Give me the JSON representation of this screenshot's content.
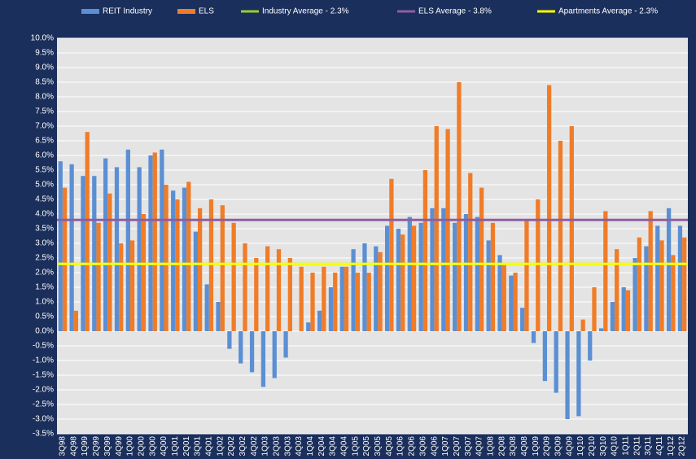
{
  "chart_data": {
    "type": "bar",
    "categories": [
      "3Q98",
      "4Q98",
      "1Q99",
      "2Q99",
      "3Q99",
      "4Q99",
      "1Q00",
      "2Q00",
      "3Q00",
      "4Q00",
      "1Q01",
      "2Q01",
      "3Q01",
      "4Q01",
      "1Q02",
      "2Q02",
      "3Q02",
      "4Q02",
      "1Q03",
      "2Q03",
      "3Q03",
      "4Q03",
      "1Q04",
      "2Q04",
      "3Q04",
      "4Q04",
      "1Q05",
      "2Q05",
      "3Q05",
      "4Q05",
      "1Q06",
      "2Q06",
      "3Q06",
      "4Q06",
      "1Q07",
      "2Q07",
      "3Q07",
      "4Q07",
      "1Q08",
      "2Q08",
      "3Q08",
      "4Q08",
      "1Q09",
      "2Q09",
      "3Q09",
      "4Q09",
      "1Q10",
      "2Q10",
      "3Q10",
      "4Q10",
      "1Q11",
      "2Q11",
      "3Q11",
      "4Q11",
      "1Q12",
      "2Q12"
    ],
    "series": [
      {
        "name": "REIT Industry",
        "color": "#5b8fd4",
        "values": [
          5.8,
          5.7,
          5.3,
          5.3,
          5.9,
          5.6,
          6.2,
          5.6,
          6.0,
          6.2,
          4.8,
          4.9,
          3.4,
          1.6,
          1.0,
          -0.6,
          -1.1,
          -1.4,
          -1.9,
          -1.6,
          -0.9,
          0.0,
          0.3,
          0.7,
          1.5,
          2.2,
          2.8,
          3.0,
          2.9,
          3.6,
          3.5,
          3.9,
          3.7,
          4.2,
          4.2,
          3.7,
          4.0,
          3.9,
          3.1,
          2.6,
          1.9,
          0.8,
          -0.4,
          -1.7,
          -2.1,
          -3.0,
          -2.9,
          -1.0,
          0.1,
          1.0,
          1.5,
          2.5,
          2.9,
          3.6,
          4.2,
          3.6
        ]
      },
      {
        "name": "ELS",
        "color": "#f07c28",
        "values": [
          4.9,
          0.7,
          6.8,
          3.7,
          4.7,
          3.0,
          3.1,
          4.0,
          6.1,
          5.0,
          4.5,
          5.1,
          4.2,
          4.5,
          4.3,
          3.7,
          3.0,
          2.5,
          2.9,
          2.8,
          2.5,
          2.2,
          2.0,
          2.2,
          2.0,
          2.2,
          2.0,
          2.0,
          2.7,
          5.2,
          3.3,
          3.6,
          5.5,
          7.0,
          6.9,
          8.5,
          5.4,
          4.9,
          3.7,
          2.3,
          2.0,
          3.8,
          4.5,
          8.4,
          6.5,
          7.0,
          0.4,
          1.5,
          4.1,
          2.8,
          1.4,
          3.2,
          4.1,
          3.1,
          2.6,
          3.2
        ]
      }
    ],
    "reference_lines": [
      {
        "name": "Industry Average - 2.3%",
        "value": 2.3,
        "color": "#9acd32"
      },
      {
        "name": "ELS Average - 3.8%",
        "value": 3.8,
        "color": "#8e5ea2"
      },
      {
        "name": "Apartments Average - 2.3%",
        "value": 2.3,
        "color": "#ffff00"
      }
    ],
    "ylim": [
      -3.5,
      10
    ],
    "yticks": [
      {
        "value": -3.5,
        "label": "-3.5%"
      },
      {
        "value": -3,
        "label": "-3.0%"
      },
      {
        "value": -2.5,
        "label": "-2.5%"
      },
      {
        "value": -2,
        "label": "-2.0%"
      },
      {
        "value": -1.5,
        "label": "-1.5%"
      },
      {
        "value": -1,
        "label": "-1.0%"
      },
      {
        "value": -0.5,
        "label": "-0.5%"
      },
      {
        "value": 0,
        "label": "0.0%"
      },
      {
        "value": 0.5,
        "label": "0.5%"
      },
      {
        "value": 1,
        "label": "1.0%"
      },
      {
        "value": 1.5,
        "label": "1.5%"
      },
      {
        "value": 2,
        "label": "2.0%"
      },
      {
        "value": 2.5,
        "label": "2.5%"
      },
      {
        "value": 3,
        "label": "3.0%"
      },
      {
        "value": 3.5,
        "label": "3.5%"
      },
      {
        "value": 4,
        "label": "4.0%"
      },
      {
        "value": 4.5,
        "label": "4.5%"
      },
      {
        "value": 5,
        "label": "5.0%"
      },
      {
        "value": 5.5,
        "label": "5.5%"
      },
      {
        "value": 6,
        "label": "6.0%"
      },
      {
        "value": 6.5,
        "label": "6.5%"
      },
      {
        "value": 7,
        "label": "7.0%"
      },
      {
        "value": 7.5,
        "label": "7.5%"
      },
      {
        "value": 8,
        "label": "8.0%"
      },
      {
        "value": 8.5,
        "label": "8.5%"
      },
      {
        "value": 9,
        "label": "9.0%"
      },
      {
        "value": 9.5,
        "label": "9.5%"
      },
      {
        "value": 10,
        "label": "10.0%"
      }
    ],
    "grid": true
  }
}
